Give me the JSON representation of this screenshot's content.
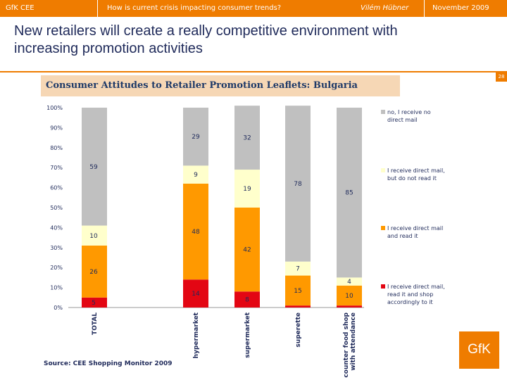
{
  "header": {
    "brand": "GfK CEE",
    "topic": "How is current crisis impacting consumer trends?",
    "author": "Vilém Hübner",
    "date": "November  2009"
  },
  "slide": {
    "title": "New retailers will create a really competitive environment with increasing promotion activities",
    "page_number": "28",
    "source": "Source: CEE Shopping Monitor 2009",
    "logo_text": "GfK"
  },
  "colors": {
    "brand_orange": "#ef7c00",
    "series_no": "#c0c0c0",
    "series_not_read": "#ffffcc",
    "series_read": "#ff9900",
    "series_shop": "#e30613"
  },
  "chart_data": {
    "type": "bar",
    "stacked": true,
    "percent": true,
    "title": "Consumer Attitudes to Retailer Promotion Leaflets: Bulgaria",
    "xlabel": "",
    "ylabel": "",
    "ylim": [
      0,
      100
    ],
    "yticks": [
      "0%",
      "10%",
      "20%",
      "30%",
      "40%",
      "50%",
      "60%",
      "70%",
      "80%",
      "90%",
      "100%"
    ],
    "categories": [
      "TOTAL",
      "hypermarket",
      "supermarket",
      "superette",
      "counter food shop with attendance"
    ],
    "series": [
      {
        "name": "I receive direct mail, read it and shop accordingly to it",
        "values": [
          5,
          14,
          8,
          1,
          1
        ],
        "labels": [
          "5",
          "14",
          "8",
          "",
          ""
        ]
      },
      {
        "name": "I receive direct mail and read it",
        "values": [
          26,
          48,
          42,
          15,
          10
        ],
        "labels": [
          "26",
          "48",
          "42",
          "15",
          "10"
        ]
      },
      {
        "name": "I receive direct mail, but do not read it",
        "values": [
          10,
          9,
          19,
          7,
          4
        ],
        "labels": [
          "10",
          "9",
          "19",
          "7",
          "4"
        ]
      },
      {
        "name": "no,  I receive no direct mail",
        "values": [
          59,
          29,
          32,
          78,
          85
        ],
        "labels": [
          "59",
          "29",
          "32",
          "78",
          "85"
        ]
      }
    ],
    "legend": [
      "no,  I receive no direct mail",
      "I receive direct mail, but do not read it",
      "I receive direct mail and read it",
      "I receive direct mail, read it and shop accordingly to it"
    ],
    "legend_position": "right"
  }
}
